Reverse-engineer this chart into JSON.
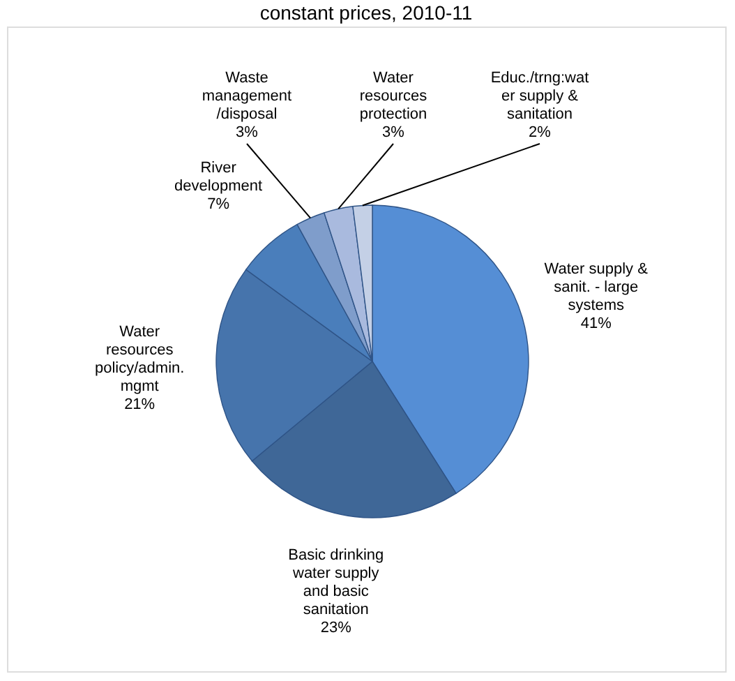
{
  "chart_data": {
    "type": "pie",
    "title": "constant prices, 2010-11",
    "categories": [
      "Water supply & sanit. - large systems",
      "Basic drinking water supply and basic sanitation",
      "Water resources policy/admin. mgmt",
      "River development",
      "Waste management /disposal",
      "Water resources protection",
      "Educ./trng:water supply & sanitation"
    ],
    "values": [
      41,
      23,
      21,
      7,
      3,
      3,
      2
    ],
    "value_labels": [
      "41%",
      "23%",
      "21%",
      "7%",
      "3%",
      "3%",
      "2%"
    ],
    "colors": [
      "#558ed5",
      "#3f6797",
      "#4674ac",
      "#4a7ebb",
      "#7f9dcb",
      "#a9bade",
      "#c4d0e6"
    ],
    "legend": false
  }
}
